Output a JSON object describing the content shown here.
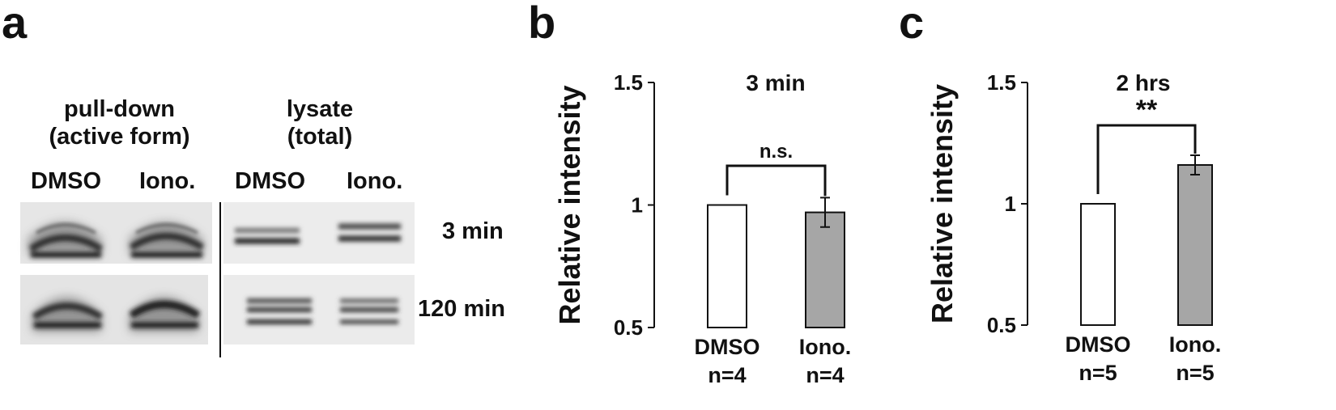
{
  "panels": {
    "a": {
      "letter": "a",
      "headers": {
        "pulldown": [
          "pull-down",
          "(active form)"
        ],
        "lysate": [
          "lysate",
          "(total)"
        ]
      },
      "lanes": [
        "DMSO",
        "Iono.",
        "DMSO",
        "Iono."
      ],
      "rows": [
        "3 min",
        "120 min"
      ]
    },
    "b": {
      "letter": "b"
    },
    "c": {
      "letter": "c"
    }
  },
  "chart_data": [
    {
      "type": "bar",
      "title": "3 min",
      "ylabel": "Relative intensity",
      "ylim": [
        0.5,
        1.5
      ],
      "yticks": [
        "0.5",
        "1",
        "1.5"
      ],
      "categories": [
        "DMSO",
        "Iono."
      ],
      "sublabels": [
        "n=4",
        "n=4"
      ],
      "values": [
        1.0,
        0.97
      ],
      "errors": [
        0,
        0.06
      ],
      "bar_colors": [
        "#ffffff",
        "#a6a6a6"
      ],
      "significance": "n.s."
    },
    {
      "type": "bar",
      "title": "2 hrs",
      "ylabel": "Relative intensity",
      "ylim": [
        0.5,
        1.5
      ],
      "yticks": [
        "0.5",
        "1",
        "1.5"
      ],
      "categories": [
        "DMSO",
        "Iono."
      ],
      "sublabels": [
        "n=5",
        "n=5"
      ],
      "values": [
        1.0,
        1.16
      ],
      "errors": [
        0,
        0.04
      ],
      "bar_colors": [
        "#ffffff",
        "#a6a6a6"
      ],
      "significance": "**"
    }
  ]
}
